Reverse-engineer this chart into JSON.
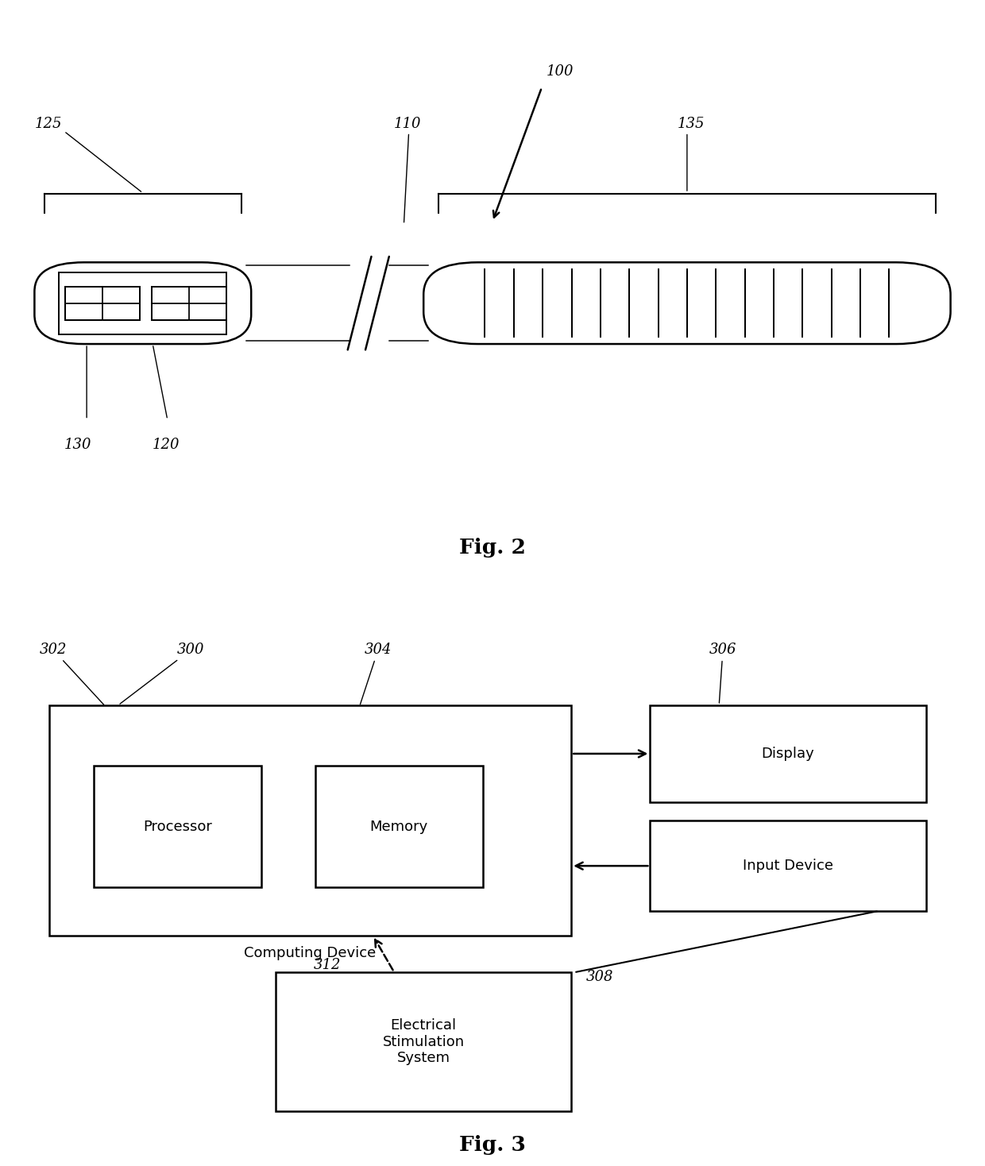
{
  "fig_width": 12.4,
  "fig_height": 14.68,
  "bg_color": "#ffffff",
  "fig2": {
    "title": "Fig. 2",
    "label_100": "100",
    "label_125": "125",
    "label_110": "110",
    "label_135": "135",
    "label_130": "130",
    "label_120": "120"
  },
  "fig3": {
    "title": "Fig. 3",
    "label_300": "300",
    "label_302": "302",
    "label_304": "304",
    "label_306": "306",
    "label_308": "308",
    "label_312": "312",
    "computing_label": "Computing Device",
    "processor_label": "Processor",
    "memory_label": "Memory",
    "display_label": "Display",
    "input_label": "Input Device",
    "ess_label": "Electrical\nStimulation\nSystem"
  }
}
